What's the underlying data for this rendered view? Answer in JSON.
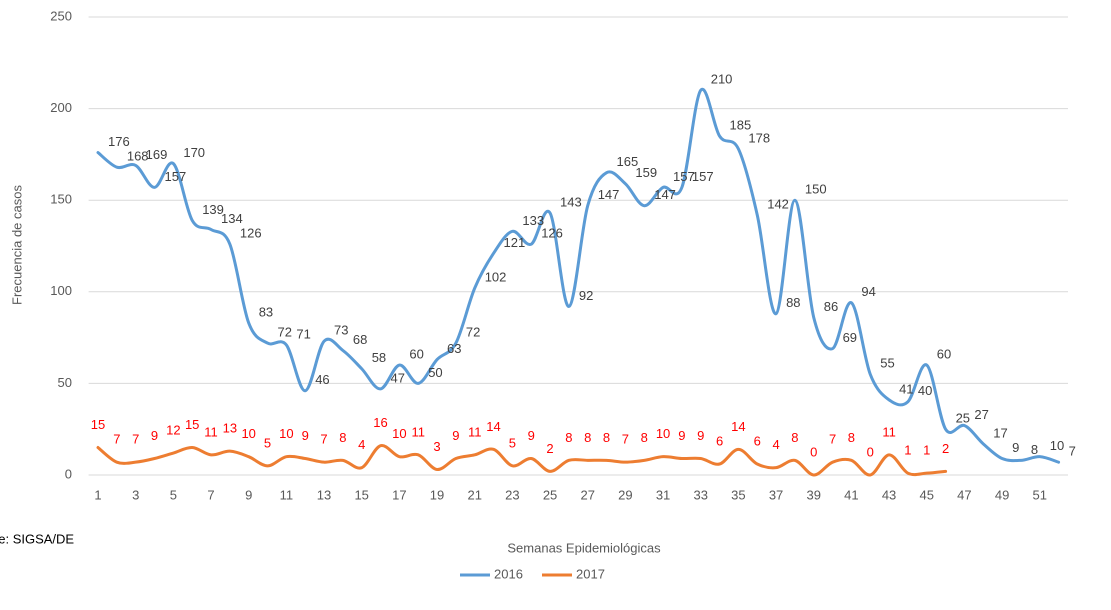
{
  "chart_data": {
    "type": "line",
    "x_label": "Semanas Epidemiológicas",
    "y_label": "Frecuencia de casos",
    "source": "Fuente: SIGSA/DE",
    "categories": [
      1,
      null,
      3,
      null,
      5,
      null,
      7,
      null,
      9,
      null,
      11,
      null,
      13,
      null,
      15,
      null,
      17,
      null,
      19,
      null,
      21,
      null,
      23,
      null,
      25,
      null,
      27,
      null,
      29,
      null,
      31,
      null,
      33,
      null,
      35,
      null,
      37,
      null,
      39,
      null,
      41,
      null,
      43,
      null,
      45,
      null,
      47,
      null,
      49,
      null,
      51,
      null
    ],
    "series": [
      {
        "name": "2016",
        "color": "#5b9bd5",
        "label_color": "#404040",
        "values": [
          176,
          168,
          169,
          157,
          170,
          139,
          134,
          126,
          83,
          72,
          71,
          46,
          73,
          68,
          58,
          47,
          60,
          50,
          63,
          72,
          102,
          121,
          133,
          126,
          143,
          92,
          147,
          165,
          159,
          147,
          157,
          157,
          210,
          185,
          178,
          142,
          88,
          150,
          86,
          69,
          94,
          55,
          41,
          40,
          60,
          25,
          27,
          17,
          9,
          8,
          10,
          7
        ]
      },
      {
        "name": "2017",
        "color": "#ed7d31",
        "label_color": "#ff0000",
        "values": [
          15,
          7,
          7,
          9,
          12,
          15,
          11,
          13,
          10,
          5,
          10,
          9,
          7,
          8,
          4,
          16,
          10,
          11,
          3,
          9,
          11,
          14,
          5,
          9,
          2,
          8,
          8,
          8,
          7,
          8,
          10,
          9,
          9,
          6,
          14,
          6,
          4,
          8,
          0,
          7,
          8,
          0,
          11,
          1,
          1,
          2,
          null,
          null,
          null,
          null,
          null,
          null
        ]
      }
    ],
    "ylim": [
      0,
      250
    ],
    "yticks": [
      0,
      50,
      100,
      150,
      200,
      250
    ],
    "grid": true,
    "legend": "bottom"
  }
}
